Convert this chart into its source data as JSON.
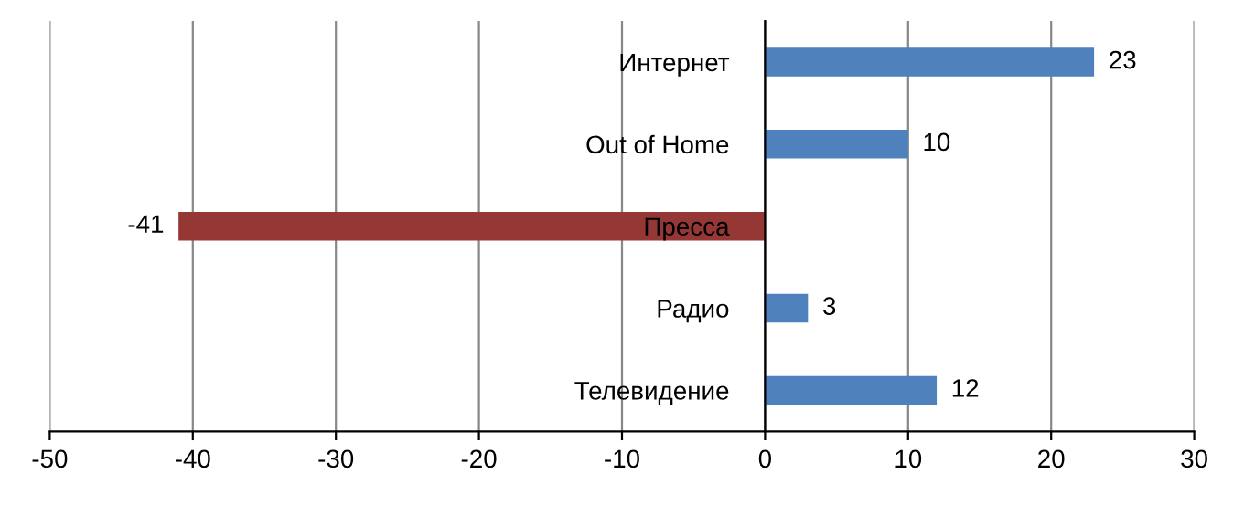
{
  "chart_data": {
    "type": "bar",
    "orientation": "horizontal",
    "categories": [
      "Интернет",
      "Out of Home",
      "Пресса",
      "Радио",
      "Телевидение"
    ],
    "values": [
      23,
      10,
      -41,
      3,
      12
    ],
    "colors": [
      "#4f81bd",
      "#4f81bd",
      "#953735",
      "#4f81bd",
      "#4f81bd"
    ],
    "xlim": [
      -50,
      30
    ],
    "xticks": [
      -50,
      -40,
      -30,
      -20,
      -10,
      0,
      10,
      20,
      30
    ],
    "grid": "x",
    "data_labels": true,
    "legend": false
  }
}
